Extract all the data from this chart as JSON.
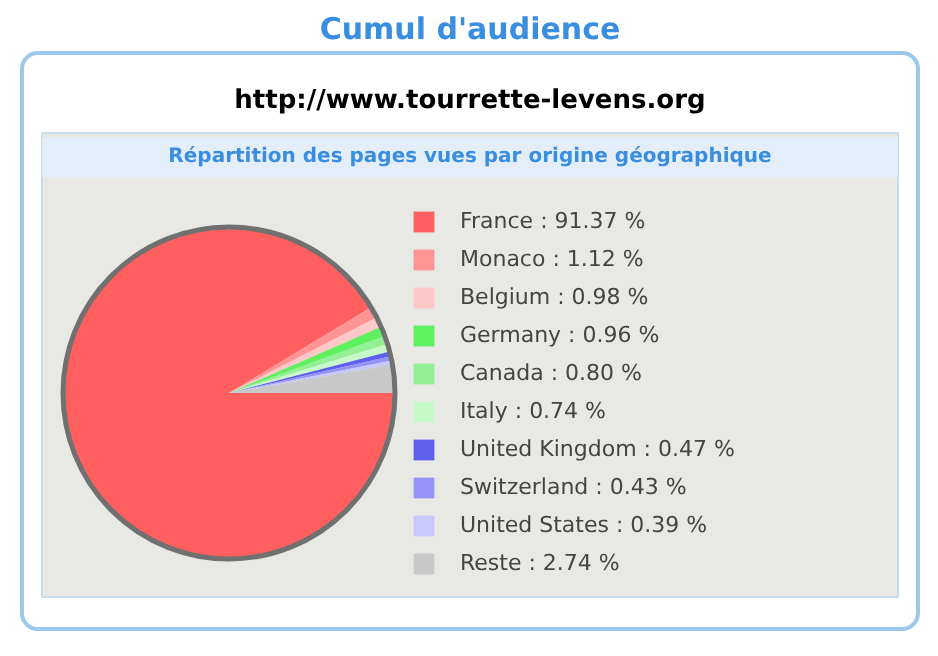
{
  "chart_data": {
    "type": "pie",
    "title": "Cumul d'audience",
    "subtitle": "http://www.tourrette-levens.org",
    "annotations": [
      "Répartition des pages vues par origine géographique"
    ],
    "categories": [
      "France",
      "Monaco",
      "Belgium",
      "Germany",
      "Canada",
      "Italy",
      "United Kingdom",
      "Switzerland",
      "United States",
      "Reste"
    ],
    "values": [
      91.37,
      1.12,
      0.98,
      0.96,
      0.8,
      0.74,
      0.47,
      0.43,
      0.39,
      2.74
    ],
    "value_labels": [
      "91.37 %",
      "1.12 %",
      "0.98 %",
      "0.96 %",
      "0.80 %",
      "0.74 %",
      "0.47 %",
      "0.43 %",
      "0.39 %",
      "2.74 %"
    ],
    "colors": [
      "#ff5f5f",
      "#ff9494",
      "#ffc8c8",
      "#5ff05f",
      "#94f094",
      "#c8f8c8",
      "#5f5ff0",
      "#9494f8",
      "#c8c8fc",
      "#c8c8c8"
    ],
    "legend": "right"
  }
}
